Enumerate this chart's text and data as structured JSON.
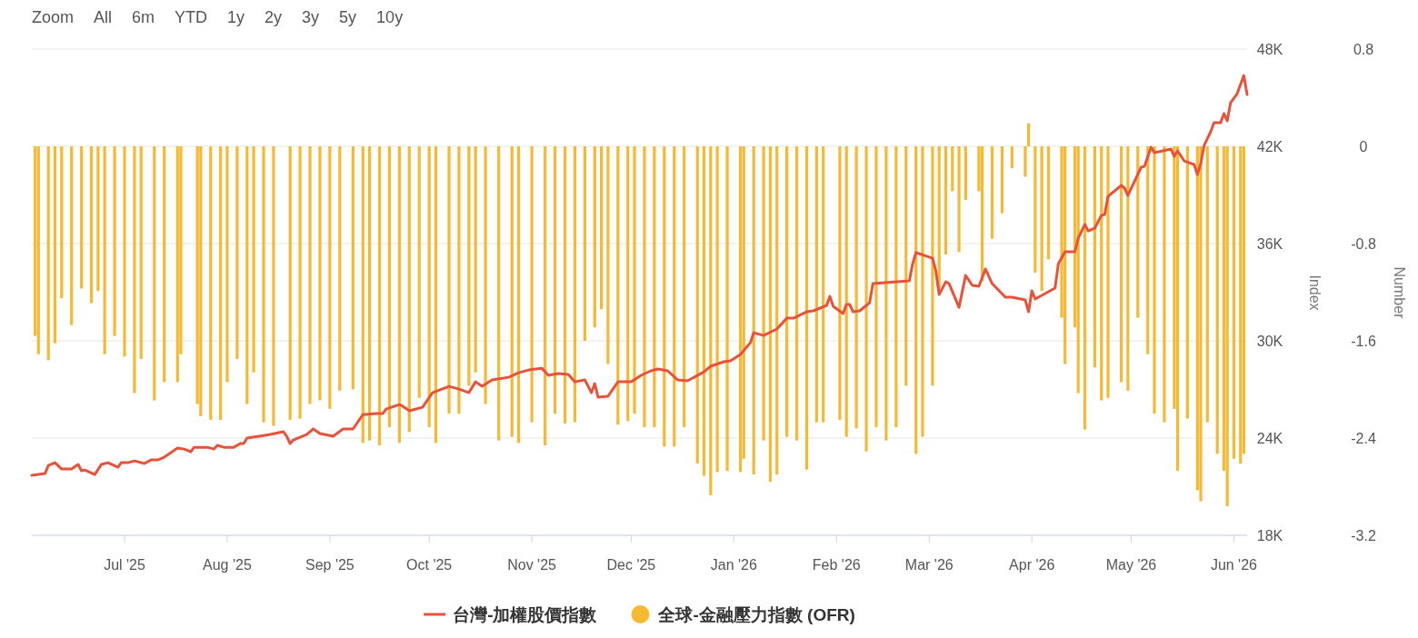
{
  "chart_data": {
    "type": "bar",
    "ylabel": "Index",
    "y2label": "Number",
    "annotations": [
      "Zoom",
      "All",
      "6m",
      "YTD",
      "1y",
      "2y",
      "3y",
      "5y",
      "10y"
    ],
    "xlim": [
      "2025-06-03",
      "2026-06-05"
    ],
    "xticks": [
      {
        "value": "2025-07-01",
        "label": "Jul '25"
      },
      {
        "value": "2025-08-01",
        "label": "Aug '25"
      },
      {
        "value": "2025-09-01",
        "label": "Sep '25"
      },
      {
        "value": "2025-10-01",
        "label": "Oct '25"
      },
      {
        "value": "2025-11-01",
        "label": "Nov '25"
      },
      {
        "value": "2025-12-01",
        "label": "Dec '25"
      },
      {
        "value": "2026-01-01",
        "label": "Jan '26"
      },
      {
        "value": "2026-02-01",
        "label": "Feb '26"
      },
      {
        "value": "2026-03-01",
        "label": "Mar '26"
      },
      {
        "value": "2026-04-01",
        "label": "Apr '26"
      },
      {
        "value": "2026-05-01",
        "label": "May '26"
      },
      {
        "value": "2026-06-01",
        "label": "Jun '26"
      }
    ],
    "ylim": [
      18000,
      48000
    ],
    "yticks": [
      {
        "value": 18000,
        "label": "18K"
      },
      {
        "value": 24000,
        "label": "24K"
      },
      {
        "value": 30000,
        "label": "30K"
      },
      {
        "value": 36000,
        "label": "36K"
      },
      {
        "value": 42000,
        "label": "42K"
      },
      {
        "value": 48000,
        "label": "48K"
      }
    ],
    "y2lim": [
      -3.2,
      0.8
    ],
    "y2ticks": [
      -3.2,
      -2.4,
      -1.6,
      -0.8,
      0,
      0.8
    ],
    "grid": "y",
    "legend": "bottom",
    "series": [
      {
        "name": "台灣-加權股價指數",
        "type": "line",
        "axis": "y",
        "color": "#e9523a",
        "x": [
          "2025-06-03",
          "2025-06-07",
          "2025-06-08",
          "2025-06-10",
          "2025-06-12",
          "2025-06-15",
          "2025-06-17",
          "2025-06-18",
          "2025-06-19",
          "2025-06-22",
          "2025-06-24",
          "2025-06-26",
          "2025-06-29",
          "2025-06-30",
          "2025-07-02",
          "2025-07-04",
          "2025-07-07",
          "2025-07-09",
          "2025-07-11",
          "2025-07-13",
          "2025-07-15",
          "2025-07-17",
          "2025-07-19",
          "2025-07-21",
          "2025-07-22",
          "2025-07-26",
          "2025-07-28",
          "2025-07-29",
          "2025-07-31",
          "2025-08-03",
          "2025-08-05",
          "2025-08-06",
          "2025-08-07",
          "2025-08-12",
          "2025-08-14",
          "2025-08-18",
          "2025-08-19",
          "2025-08-20",
          "2025-08-21",
          "2025-08-25",
          "2025-08-27",
          "2025-08-29",
          "2025-09-02",
          "2025-09-05",
          "2025-09-08",
          "2025-09-11",
          "2025-09-15",
          "2025-09-17",
          "2025-09-18",
          "2025-09-22",
          "2025-09-23",
          "2025-09-25",
          "2025-09-29",
          "2025-10-02",
          "2025-10-07",
          "2025-10-10",
          "2025-10-13",
          "2025-10-15",
          "2025-10-17",
          "2025-10-20",
          "2025-10-25",
          "2025-10-28",
          "2025-10-31",
          "2025-11-04",
          "2025-11-06",
          "2025-11-09",
          "2025-11-12",
          "2025-11-14",
          "2025-11-17",
          "2025-11-19",
          "2025-11-20",
          "2025-11-21",
          "2025-11-24",
          "2025-11-27",
          "2025-12-01",
          "2025-12-04",
          "2025-12-07",
          "2025-12-09",
          "2025-12-12",
          "2025-12-15",
          "2025-12-18",
          "2025-12-23",
          "2025-12-25",
          "2025-12-29",
          "2025-12-31",
          "2026-01-03",
          "2026-01-06",
          "2026-01-07",
          "2026-01-10",
          "2026-01-14",
          "2026-01-16",
          "2026-01-17",
          "2026-01-19",
          "2026-01-23",
          "2026-01-25",
          "2026-01-29",
          "2026-01-30",
          "2026-01-31",
          "2026-02-03",
          "2026-02-04",
          "2026-02-05",
          "2026-02-06",
          "2026-02-08",
          "2026-02-11",
          "2026-02-12",
          "2026-02-23",
          "2026-02-24",
          "2026-02-25",
          "2026-03-02",
          "2026-03-03",
          "2026-03-04",
          "2026-03-06",
          "2026-03-07",
          "2026-03-10",
          "2026-03-12",
          "2026-03-14",
          "2026-03-16",
          "2026-03-18",
          "2026-03-20",
          "2026-03-24",
          "2026-03-26",
          "2026-03-30",
          "2026-03-31",
          "2026-04-01",
          "2026-04-02",
          "2026-04-08",
          "2026-04-09",
          "2026-04-11",
          "2026-04-14",
          "2026-04-15",
          "2026-04-17",
          "2026-04-18",
          "2026-04-20",
          "2026-04-22",
          "2026-04-23",
          "2026-04-24",
          "2026-04-28",
          "2026-04-29",
          "2026-04-30",
          "2026-05-04",
          "2026-05-05",
          "2026-05-07",
          "2026-05-08",
          "2026-05-13",
          "2026-05-14",
          "2026-05-15",
          "2026-05-17",
          "2026-05-20",
          "2026-05-21",
          "2026-05-22",
          "2026-05-23",
          "2026-05-25",
          "2026-05-26",
          "2026-05-28",
          "2026-05-29",
          "2026-05-30",
          "2026-05-31",
          "2026-06-02",
          "2026-06-04",
          "2026-06-05"
        ],
        "values": [
          21700,
          21810,
          22310,
          22480,
          22090,
          22090,
          22370,
          21980,
          22030,
          21750,
          22370,
          22480,
          22200,
          22480,
          22480,
          22590,
          22430,
          22650,
          22650,
          22820,
          23100,
          23380,
          23320,
          23150,
          23430,
          23430,
          23320,
          23550,
          23430,
          23430,
          23660,
          23660,
          24000,
          24160,
          24220,
          24390,
          24110,
          23660,
          23880,
          24220,
          24560,
          24280,
          24110,
          24560,
          24560,
          25450,
          25510,
          25510,
          25790,
          26070,
          25960,
          25680,
          25900,
          26800,
          27190,
          27020,
          26800,
          27470,
          27190,
          27590,
          27750,
          28030,
          28200,
          28310,
          27870,
          27980,
          27920,
          27470,
          27590,
          26800,
          27360,
          26520,
          26580,
          27470,
          27470,
          27870,
          28150,
          28260,
          28150,
          27590,
          27530,
          28090,
          28430,
          28710,
          28760,
          29160,
          29880,
          30500,
          30330,
          30730,
          31170,
          31400,
          31400,
          31790,
          31850,
          32180,
          32740,
          32130,
          31680,
          32240,
          32240,
          31790,
          31850,
          32350,
          33530,
          33700,
          34760,
          35440,
          35100,
          34320,
          32860,
          33640,
          33530,
          32070,
          34030,
          33420,
          33360,
          34430,
          33530,
          32690,
          32690,
          32520,
          31790,
          33080,
          32580,
          33250,
          34760,
          35490,
          35490,
          36330,
          37180,
          36780,
          36950,
          37740,
          37790,
          38910,
          39590,
          39420,
          38970,
          40710,
          40760,
          41940,
          41610,
          41830,
          41380,
          41720,
          41100,
          40880,
          40260,
          40930,
          42050,
          42900,
          43460,
          43460,
          44020,
          43570,
          44690,
          45250,
          46370,
          45200
        ]
      },
      {
        "name": "全球-金融壓力指數 (OFR)",
        "axis": "y2",
        "color": "#f7b932",
        "x": [
          "2025-06-04",
          "2025-06-05",
          "2025-06-08",
          "2025-06-10",
          "2025-06-12",
          "2025-06-15",
          "2025-06-18",
          "2025-06-21",
          "2025-06-23",
          "2025-06-25",
          "2025-06-28",
          "2025-07-01",
          "2025-07-04",
          "2025-07-06",
          "2025-07-10",
          "2025-07-13",
          "2025-07-17",
          "2025-07-18",
          "2025-07-23",
          "2025-07-24",
          "2025-07-27",
          "2025-07-30",
          "2025-08-01",
          "2025-08-04",
          "2025-08-07",
          "2025-08-09",
          "2025-08-12",
          "2025-08-15",
          "2025-08-20",
          "2025-08-23",
          "2025-08-26",
          "2025-08-29",
          "2025-09-01",
          "2025-09-04",
          "2025-09-08",
          "2025-09-11",
          "2025-09-13",
          "2025-09-16",
          "2025-09-19",
          "2025-09-22",
          "2025-09-25",
          "2025-09-28",
          "2025-10-01",
          "2025-10-03",
          "2025-10-07",
          "2025-10-10",
          "2025-10-13",
          "2025-10-15",
          "2025-10-18",
          "2025-10-22",
          "2025-10-26",
          "2025-10-28",
          "2025-11-01",
          "2025-11-05",
          "2025-11-08",
          "2025-11-11",
          "2025-11-14",
          "2025-11-17",
          "2025-11-20",
          "2025-11-22",
          "2025-11-24",
          "2025-11-27",
          "2025-11-30",
          "2025-12-02",
          "2025-12-05",
          "2025-12-08",
          "2025-12-11",
          "2025-12-14",
          "2025-12-17",
          "2025-12-21",
          "2025-12-23",
          "2025-12-25",
          "2025-12-27",
          "2025-12-30",
          "2026-01-03",
          "2026-01-04",
          "2026-01-07",
          "2026-01-10",
          "2026-01-12",
          "2026-01-14",
          "2026-01-17",
          "2026-01-20",
          "2026-01-23",
          "2026-01-26",
          "2026-01-28",
          "2026-02-02",
          "2026-02-04",
          "2026-02-07",
          "2026-02-10",
          "2026-02-13",
          "2026-02-16",
          "2026-02-19",
          "2026-02-22",
          "2026-02-25",
          "2026-02-27",
          "2026-03-02",
          "2026-03-04",
          "2026-03-06",
          "2026-03-08",
          "2026-03-10",
          "2026-03-12",
          "2026-03-16",
          "2026-03-17",
          "2026-03-20",
          "2026-03-23",
          "2026-03-26",
          "2026-03-30",
          "2026-03-31",
          "2026-04-02",
          "2026-04-04",
          "2026-04-06",
          "2026-04-10",
          "2026-04-11",
          "2026-04-14",
          "2026-04-15",
          "2026-04-17",
          "2026-04-20",
          "2026-04-22",
          "2026-04-24",
          "2026-04-28",
          "2026-04-30",
          "2026-05-03",
          "2026-05-06",
          "2026-05-08",
          "2026-05-11",
          "2026-05-14",
          "2026-05-15",
          "2026-05-18",
          "2026-05-21",
          "2026-05-22",
          "2026-05-24",
          "2026-05-27",
          "2026-05-29",
          "2026-05-30",
          "2026-06-01",
          "2026-06-03",
          "2026-06-04"
        ],
        "values": [
          -1.56,
          -1.71,
          -1.76,
          -1.62,
          -1.25,
          -1.47,
          -1.17,
          -1.29,
          -1.19,
          -1.71,
          -1.56,
          -1.73,
          -2.03,
          -1.75,
          -2.09,
          -1.94,
          -1.94,
          -1.71,
          -2.12,
          -2.22,
          -2.25,
          -2.25,
          -1.94,
          -1.75,
          -2.12,
          -1.86,
          -2.27,
          -2.3,
          -2.25,
          -2.24,
          -2.12,
          -2.09,
          -2.16,
          -2.01,
          -2.0,
          -2.44,
          -2.42,
          -2.46,
          -2.31,
          -2.44,
          -2.35,
          -2.07,
          -2.31,
          -2.44,
          -2.2,
          -2.2,
          -1.97,
          -1.86,
          -2.12,
          -2.42,
          -2.39,
          -2.44,
          -2.27,
          -2.46,
          -2.2,
          -2.28,
          -2.27,
          -1.6,
          -1.49,
          -1.34,
          -1.79,
          -2.29,
          -2.26,
          -2.2,
          -2.31,
          -2.31,
          -2.47,
          -2.47,
          -2.31,
          -2.61,
          -2.71,
          -2.87,
          -2.68,
          -2.67,
          -2.68,
          -2.57,
          -2.7,
          -2.42,
          -2.76,
          -2.7,
          -2.39,
          -2.42,
          -2.66,
          -2.27,
          -2.27,
          -2.25,
          -2.39,
          -2.32,
          -2.51,
          -2.31,
          -2.42,
          -2.31,
          -1.97,
          -2.53,
          -2.39,
          -1.97,
          -1.17,
          -0.89,
          -0.37,
          -0.87,
          -0.44,
          -0.37,
          -1.11,
          -0.76,
          -0.55,
          -0.18,
          -0.25,
          0.19,
          -1.04,
          -1.19,
          -0.93,
          -1.41,
          -1.79,
          -1.49,
          -2.03,
          -2.33,
          -1.82,
          -2.09,
          -2.07,
          -1.94,
          -2.01,
          -1.41,
          -1.71,
          -2.2,
          -2.27,
          -2.16,
          -2.67,
          -2.24,
          -2.83,
          -2.92,
          -2.27,
          -2.53,
          -2.67,
          -2.96,
          -2.57,
          -2.61,
          -2.53
        ]
      }
    ]
  }
}
